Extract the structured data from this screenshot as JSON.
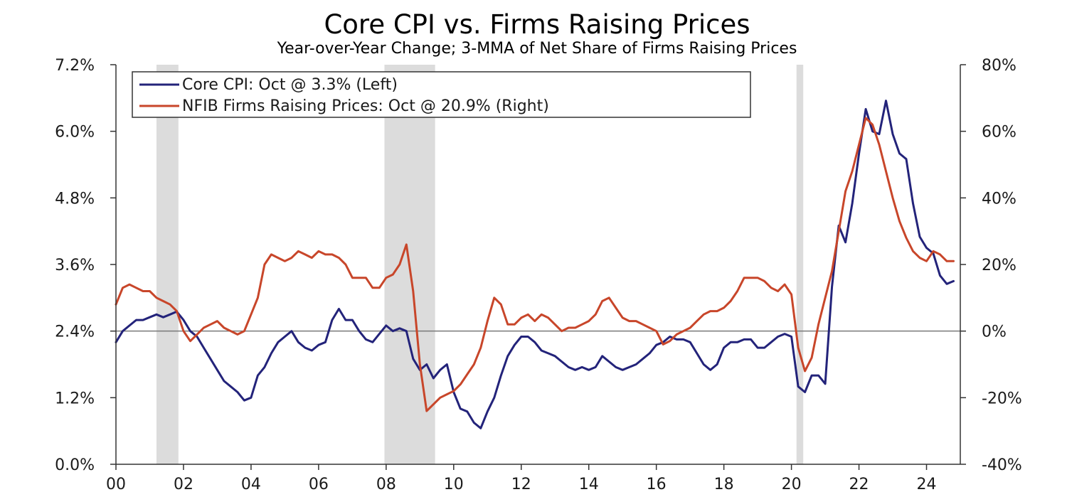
{
  "chart_data": {
    "type": "line",
    "title": "Core CPI vs. Firms Raising Prices",
    "subtitle": "Year-over-Year Change; 3-MMA of Net Share of Firms Raising Prices",
    "x_axis": {
      "range": [
        2000,
        2025
      ],
      "tick_values": [
        2000,
        2002,
        2004,
        2006,
        2008,
        2010,
        2012,
        2014,
        2016,
        2018,
        2020,
        2022,
        2024
      ],
      "tick_labels": [
        "00",
        "02",
        "04",
        "06",
        "08",
        "10",
        "12",
        "14",
        "16",
        "18",
        "20",
        "22",
        "24"
      ]
    },
    "y_left": {
      "range": [
        0,
        7.2
      ],
      "tick_values": [
        0,
        1.2,
        2.4,
        3.6,
        4.8,
        6.0,
        7.2
      ],
      "tick_labels": [
        "0.0%",
        "1.2%",
        "2.4%",
        "3.6%",
        "4.8%",
        "6.0%",
        "7.2%"
      ]
    },
    "y_right": {
      "range": [
        -40,
        80
      ],
      "tick_values": [
        -40,
        -20,
        0,
        20,
        40,
        60,
        80
      ],
      "tick_labels": [
        "-40%",
        "-20%",
        "0%",
        "20%",
        "40%",
        "60%",
        "80%"
      ]
    },
    "recessions": [
      [
        2001.2,
        2001.85
      ],
      [
        2007.95,
        2009.45
      ],
      [
        2020.15,
        2020.35
      ]
    ],
    "legend_position": "top-left",
    "colors": {
      "core_cpi": "#23237a",
      "nfib": "#c8462a",
      "recession": "#dcdcdc",
      "zero_line": "#7a7a7a"
    },
    "series": [
      {
        "name": "Core CPI: Oct @ 3.3% (Left)",
        "axis": "left",
        "x": [
          2000.0,
          2000.2,
          2000.4,
          2000.6,
          2000.8,
          2001.0,
          2001.2,
          2001.4,
          2001.6,
          2001.8,
          2002.0,
          2002.2,
          2002.4,
          2002.6,
          2002.8,
          2003.0,
          2003.2,
          2003.4,
          2003.6,
          2003.8,
          2004.0,
          2004.2,
          2004.4,
          2004.6,
          2004.8,
          2005.0,
          2005.2,
          2005.4,
          2005.6,
          2005.8,
          2006.0,
          2006.2,
          2006.4,
          2006.6,
          2006.8,
          2007.0,
          2007.2,
          2007.4,
          2007.6,
          2007.8,
          2008.0,
          2008.2,
          2008.4,
          2008.6,
          2008.8,
          2009.0,
          2009.2,
          2009.4,
          2009.6,
          2009.8,
          2010.0,
          2010.2,
          2010.4,
          2010.6,
          2010.8,
          2011.0,
          2011.2,
          2011.4,
          2011.6,
          2011.8,
          2012.0,
          2012.2,
          2012.4,
          2012.6,
          2012.8,
          2013.0,
          2013.2,
          2013.4,
          2013.6,
          2013.8,
          2014.0,
          2014.2,
          2014.4,
          2014.6,
          2014.8,
          2015.0,
          2015.2,
          2015.4,
          2015.6,
          2015.8,
          2016.0,
          2016.2,
          2016.4,
          2016.6,
          2016.8,
          2017.0,
          2017.2,
          2017.4,
          2017.6,
          2017.8,
          2018.0,
          2018.2,
          2018.4,
          2018.6,
          2018.8,
          2019.0,
          2019.2,
          2019.4,
          2019.6,
          2019.8,
          2020.0,
          2020.2,
          2020.4,
          2020.6,
          2020.8,
          2021.0,
          2021.2,
          2021.4,
          2021.6,
          2021.8,
          2022.0,
          2022.2,
          2022.4,
          2022.6,
          2022.8,
          2023.0,
          2023.2,
          2023.4,
          2023.6,
          2023.8,
          2024.0,
          2024.2,
          2024.4,
          2024.6,
          2024.8
        ],
        "values": [
          2.2,
          2.4,
          2.5,
          2.6,
          2.6,
          2.65,
          2.7,
          2.65,
          2.7,
          2.75,
          2.6,
          2.4,
          2.3,
          2.1,
          1.9,
          1.7,
          1.5,
          1.4,
          1.3,
          1.15,
          1.2,
          1.6,
          1.75,
          2.0,
          2.2,
          2.3,
          2.4,
          2.2,
          2.1,
          2.05,
          2.15,
          2.2,
          2.6,
          2.8,
          2.6,
          2.6,
          2.4,
          2.25,
          2.2,
          2.35,
          2.5,
          2.4,
          2.45,
          2.4,
          1.9,
          1.7,
          1.8,
          1.55,
          1.7,
          1.8,
          1.3,
          1.0,
          0.95,
          0.75,
          0.65,
          0.95,
          1.2,
          1.6,
          1.95,
          2.15,
          2.3,
          2.3,
          2.2,
          2.05,
          2.0,
          1.95,
          1.85,
          1.75,
          1.7,
          1.75,
          1.7,
          1.75,
          1.95,
          1.85,
          1.75,
          1.7,
          1.75,
          1.8,
          1.9,
          2.0,
          2.15,
          2.2,
          2.3,
          2.25,
          2.25,
          2.2,
          2.0,
          1.8,
          1.7,
          1.8,
          2.1,
          2.2,
          2.2,
          2.25,
          2.25,
          2.1,
          2.1,
          2.2,
          2.3,
          2.35,
          2.3,
          1.4,
          1.3,
          1.6,
          1.6,
          1.45,
          3.2,
          4.3,
          4.0,
          4.7,
          5.6,
          6.4,
          6.0,
          5.95,
          6.55,
          5.95,
          5.6,
          5.5,
          4.7,
          4.1,
          3.9,
          3.8,
          3.4,
          3.25,
          3.3
        ]
      },
      {
        "name": "NFIB Firms Raising Prices: Oct @ 20.9% (Right)",
        "axis": "right",
        "x": [
          2000.0,
          2000.2,
          2000.4,
          2000.6,
          2000.8,
          2001.0,
          2001.2,
          2001.4,
          2001.6,
          2001.8,
          2002.0,
          2002.2,
          2002.4,
          2002.6,
          2002.8,
          2003.0,
          2003.2,
          2003.4,
          2003.6,
          2003.8,
          2004.0,
          2004.2,
          2004.4,
          2004.6,
          2004.8,
          2005.0,
          2005.2,
          2005.4,
          2005.6,
          2005.8,
          2006.0,
          2006.2,
          2006.4,
          2006.6,
          2006.8,
          2007.0,
          2007.2,
          2007.4,
          2007.6,
          2007.8,
          2008.0,
          2008.2,
          2008.4,
          2008.6,
          2008.8,
          2009.0,
          2009.2,
          2009.4,
          2009.6,
          2009.8,
          2010.0,
          2010.2,
          2010.4,
          2010.6,
          2010.8,
          2011.0,
          2011.2,
          2011.4,
          2011.6,
          2011.8,
          2012.0,
          2012.2,
          2012.4,
          2012.6,
          2012.8,
          2013.0,
          2013.2,
          2013.4,
          2013.6,
          2013.8,
          2014.0,
          2014.2,
          2014.4,
          2014.6,
          2014.8,
          2015.0,
          2015.2,
          2015.4,
          2015.6,
          2015.8,
          2016.0,
          2016.2,
          2016.4,
          2016.6,
          2016.8,
          2017.0,
          2017.2,
          2017.4,
          2017.6,
          2017.8,
          2018.0,
          2018.2,
          2018.4,
          2018.6,
          2018.8,
          2019.0,
          2019.2,
          2019.4,
          2019.6,
          2019.8,
          2020.0,
          2020.2,
          2020.4,
          2020.6,
          2020.8,
          2021.0,
          2021.2,
          2021.4,
          2021.6,
          2021.8,
          2022.0,
          2022.2,
          2022.4,
          2022.6,
          2022.8,
          2023.0,
          2023.2,
          2023.4,
          2023.6,
          2023.8,
          2024.0,
          2024.2,
          2024.4,
          2024.6,
          2024.8
        ],
        "values": [
          8,
          13,
          14,
          13,
          12,
          12,
          10,
          9,
          8,
          6,
          0,
          -3,
          -1,
          1,
          2,
          3,
          1,
          0,
          -1,
          0,
          5,
          10,
          20,
          23,
          22,
          21,
          22,
          24,
          23,
          22,
          24,
          23,
          23,
          22,
          20,
          16,
          16,
          16,
          13,
          13,
          16,
          17,
          20,
          26,
          12,
          -10,
          -24,
          -22,
          -20,
          -19,
          -18,
          -16,
          -13,
          -10,
          -5,
          3,
          10,
          8,
          2,
          2,
          4,
          5,
          3,
          5,
          4,
          2,
          0,
          1,
          1,
          2,
          3,
          5,
          9,
          10,
          7,
          4,
          3,
          3,
          2,
          1,
          0,
          -4,
          -3,
          -1,
          0,
          1,
          3,
          5,
          6,
          6,
          7,
          9,
          12,
          16,
          16,
          16,
          15,
          13,
          12,
          14,
          11,
          -5,
          -12,
          -8,
          2,
          10,
          18,
          30,
          42,
          48,
          56,
          64,
          62,
          56,
          48,
          40,
          33,
          28,
          24,
          22,
          21,
          24,
          23,
          21,
          21
        ]
      }
    ]
  }
}
